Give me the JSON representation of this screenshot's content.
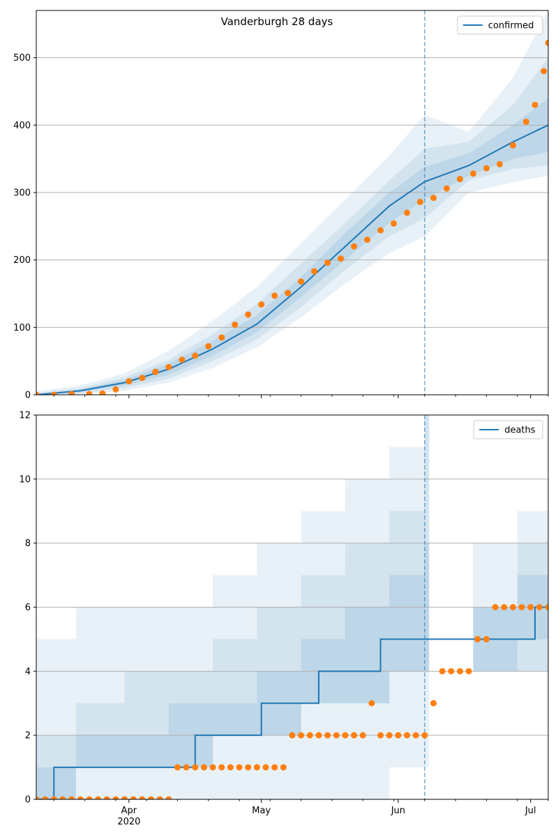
{
  "colors": {
    "model": "#1f77b4",
    "observed": "#ff7f0e",
    "band": "#1f77b4",
    "grid": "#b0b0b0",
    "vline": "#1f77b4"
  },
  "chart_data": [
    {
      "type": "line",
      "title": "Vanderburgh 28 days",
      "legend": [
        "confirmed"
      ],
      "legend_position": "top-right",
      "grid": "horizontal",
      "xlim": [
        "2020-03-11",
        "2020-07-05"
      ],
      "ylim": [
        0,
        570
      ],
      "yticks": [
        0,
        100,
        200,
        300,
        400,
        500
      ],
      "forecast_start": "2020-06-07",
      "series": [
        {
          "name": "confirmed",
          "kind": "model_median",
          "x": [
            "2020-03-11",
            "2020-03-21",
            "2020-03-31",
            "2020-04-10",
            "2020-04-20",
            "2020-04-30",
            "2020-05-10",
            "2020-05-20",
            "2020-05-30",
            "2020-06-07",
            "2020-06-17",
            "2020-06-27",
            "2020-07-05"
          ],
          "y": [
            0,
            6,
            18,
            38,
            68,
            105,
            160,
            220,
            280,
            316,
            340,
            375,
            400
          ]
        },
        {
          "kind": "observed",
          "x": [
            "2020-03-11",
            "2020-03-15",
            "2020-03-19",
            "2020-03-23",
            "2020-03-26",
            "2020-03-29",
            "2020-04-01",
            "2020-04-04",
            "2020-04-07",
            "2020-04-10",
            "2020-04-13",
            "2020-04-16",
            "2020-04-19",
            "2020-04-22",
            "2020-04-25",
            "2020-04-28",
            "2020-05-01",
            "2020-05-04",
            "2020-05-07",
            "2020-05-10",
            "2020-05-13",
            "2020-05-16",
            "2020-05-19",
            "2020-05-22",
            "2020-05-25",
            "2020-05-28",
            "2020-05-31",
            "2020-06-03",
            "2020-06-06",
            "2020-06-09",
            "2020-06-12",
            "2020-06-15",
            "2020-06-18",
            "2020-06-21",
            "2020-06-24",
            "2020-06-27",
            "2020-06-30",
            "2020-07-02",
            "2020-07-04",
            "2020-07-05"
          ],
          "y": [
            0,
            0,
            1,
            1,
            2,
            8,
            20,
            25,
            34,
            41,
            52,
            58,
            72,
            85,
            104,
            119,
            134,
            147,
            151,
            168,
            183,
            196,
            202,
            220,
            230,
            244,
            254,
            270,
            286,
            292,
            306,
            320,
            328,
            336,
            342,
            370,
            405,
            430,
            480,
            522
          ]
        }
      ],
      "bands": {
        "x": [
          "2020-03-11",
          "2020-03-21",
          "2020-03-31",
          "2020-04-10",
          "2020-04-20",
          "2020-04-30",
          "2020-05-10",
          "2020-05-20",
          "2020-05-30",
          "2020-06-07",
          "2020-06-17",
          "2020-06-27",
          "2020-07-05"
        ],
        "outer_low": [
          0,
          1,
          6,
          18,
          40,
          70,
          115,
          165,
          210,
          235,
          300,
          315,
          325
        ],
        "outer_high": [
          5,
          14,
          32,
          65,
          110,
          160,
          225,
          290,
          355,
          415,
          390,
          470,
          570
        ],
        "mid_low": [
          0,
          2,
          10,
          24,
          50,
          82,
          130,
          185,
          235,
          262,
          318,
          335,
          340
        ],
        "mid_high": [
          3,
          10,
          26,
          52,
          90,
          135,
          195,
          255,
          318,
          365,
          375,
          430,
          500
        ],
        "inner_low": [
          0,
          4,
          14,
          30,
          58,
          93,
          145,
          200,
          255,
          290,
          325,
          350,
          360
        ],
        "inner_high": [
          1,
          8,
          22,
          46,
          80,
          118,
          175,
          240,
          300,
          338,
          358,
          400,
          440
        ]
      }
    },
    {
      "type": "line",
      "legend": [
        "deaths"
      ],
      "legend_position": "top-right",
      "grid": "horizontal",
      "xlim": [
        "2020-03-11",
        "2020-07-05"
      ],
      "ylim": [
        0,
        12
      ],
      "yticks": [
        0,
        2,
        4,
        6,
        8,
        10,
        12
      ],
      "xticks": [
        {
          "date": "2020-04-01",
          "label": "Apr",
          "sublabel": "2020"
        },
        {
          "date": "2020-05-01",
          "label": "May"
        },
        {
          "date": "2020-06-01",
          "label": "Jun"
        },
        {
          "date": "2020-07-01",
          "label": "Jul"
        }
      ],
      "forecast_start": "2020-06-07",
      "series": [
        {
          "name": "deaths",
          "kind": "model_median_step",
          "x": [
            "2020-03-11",
            "2020-03-15",
            "2020-04-16",
            "2020-05-01",
            "2020-05-14",
            "2020-05-28",
            "2020-06-07",
            "2020-06-20",
            "2020-07-02",
            "2020-07-05"
          ],
          "y": [
            0,
            1,
            2,
            3,
            4,
            5,
            5,
            5,
            6,
            6
          ]
        },
        {
          "kind": "observed",
          "x": [
            "2020-03-11",
            "2020-03-13",
            "2020-03-15",
            "2020-03-17",
            "2020-03-19",
            "2020-03-21",
            "2020-03-23",
            "2020-03-25",
            "2020-03-27",
            "2020-03-29",
            "2020-03-31",
            "2020-04-02",
            "2020-04-04",
            "2020-04-06",
            "2020-04-08",
            "2020-04-10",
            "2020-04-12",
            "2020-04-14",
            "2020-04-16",
            "2020-04-18",
            "2020-04-20",
            "2020-04-22",
            "2020-04-24",
            "2020-04-26",
            "2020-04-28",
            "2020-04-30",
            "2020-05-02",
            "2020-05-04",
            "2020-05-06",
            "2020-05-08",
            "2020-05-10",
            "2020-05-12",
            "2020-05-14",
            "2020-05-16",
            "2020-05-18",
            "2020-05-20",
            "2020-05-22",
            "2020-05-24",
            "2020-05-26",
            "2020-05-28",
            "2020-05-30",
            "2020-06-01",
            "2020-06-03",
            "2020-06-05",
            "2020-06-07",
            "2020-06-09",
            "2020-06-11",
            "2020-06-13",
            "2020-06-15",
            "2020-06-17",
            "2020-06-19",
            "2020-06-21",
            "2020-06-23",
            "2020-06-25",
            "2020-06-27",
            "2020-06-29",
            "2020-07-01",
            "2020-07-03",
            "2020-07-05"
          ],
          "y": [
            0,
            0,
            0,
            0,
            0,
            0,
            0,
            0,
            0,
            0,
            0,
            0,
            0,
            0,
            0,
            0,
            1,
            1,
            1,
            1,
            1,
            1,
            1,
            1,
            1,
            1,
            1,
            1,
            1,
            2,
            2,
            2,
            2,
            2,
            2,
            2,
            2,
            2,
            3,
            2,
            2,
            2,
            2,
            2,
            2,
            3,
            4,
            4,
            4,
            4,
            5,
            5,
            6,
            6,
            6,
            6,
            6,
            6,
            6
          ]
        }
      ],
      "bands": {
        "x": [
          "2020-03-11",
          "2020-03-20",
          "2020-03-31",
          "2020-04-10",
          "2020-04-20",
          "2020-04-30",
          "2020-05-10",
          "2020-05-20",
          "2020-05-30",
          "2020-06-07",
          "2020-06-08",
          "2020-06-18",
          "2020-06-28",
          "2020-07-05"
        ],
        "outer_low": [
          0,
          0,
          0,
          0,
          0,
          0,
          0,
          0,
          1,
          1,
          4,
          4,
          4,
          4
        ],
        "outer_high": [
          5,
          6,
          6,
          6,
          7,
          8,
          9,
          10,
          11,
          12,
          4,
          8,
          9,
          11
        ],
        "mid_low": [
          0,
          1,
          1,
          1,
          2,
          2,
          3,
          3,
          4,
          4,
          4,
          4,
          4,
          5
        ],
        "mid_high": [
          2,
          3,
          4,
          4,
          5,
          6,
          7,
          8,
          9,
          12,
          4,
          6,
          8,
          9
        ],
        "inner_low": [
          0,
          1,
          1,
          1,
          2,
          2,
          3,
          3,
          4,
          4,
          4,
          4,
          5,
          5
        ],
        "inner_high": [
          1,
          2,
          2,
          3,
          3,
          4,
          5,
          6,
          7,
          8,
          4,
          6,
          7,
          7
        ]
      }
    }
  ]
}
